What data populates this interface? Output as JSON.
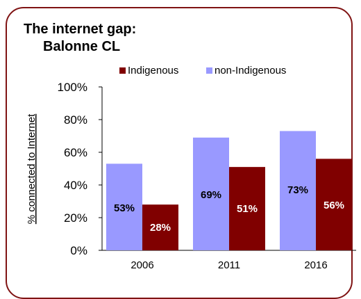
{
  "title_line1": "The internet gap:",
  "title_line2": "Balonne CL",
  "chart_data": {
    "type": "bar",
    "categories": [
      "2006",
      "2011",
      "2016"
    ],
    "series": [
      {
        "name": "non-Indigenous",
        "values": [
          53,
          69,
          73
        ],
        "labels": [
          "53%",
          "69%",
          "73%"
        ],
        "color": "#9999ff",
        "label_color": "#000000"
      },
      {
        "name": "Indigenous",
        "values": [
          28,
          51,
          56
        ],
        "labels": [
          "28%",
          "51%",
          "56%"
        ],
        "color": "#800000",
        "label_color": "#ffffff"
      }
    ],
    "legend_order": [
      "Indigenous",
      "non-Indigenous"
    ],
    "legend_position": "top",
    "ylabel": "% connected to Internet",
    "yticks": [
      "0%",
      "20%",
      "40%",
      "60%",
      "80%",
      "100%"
    ],
    "ylim": [
      0,
      100
    ],
    "grid": false
  }
}
